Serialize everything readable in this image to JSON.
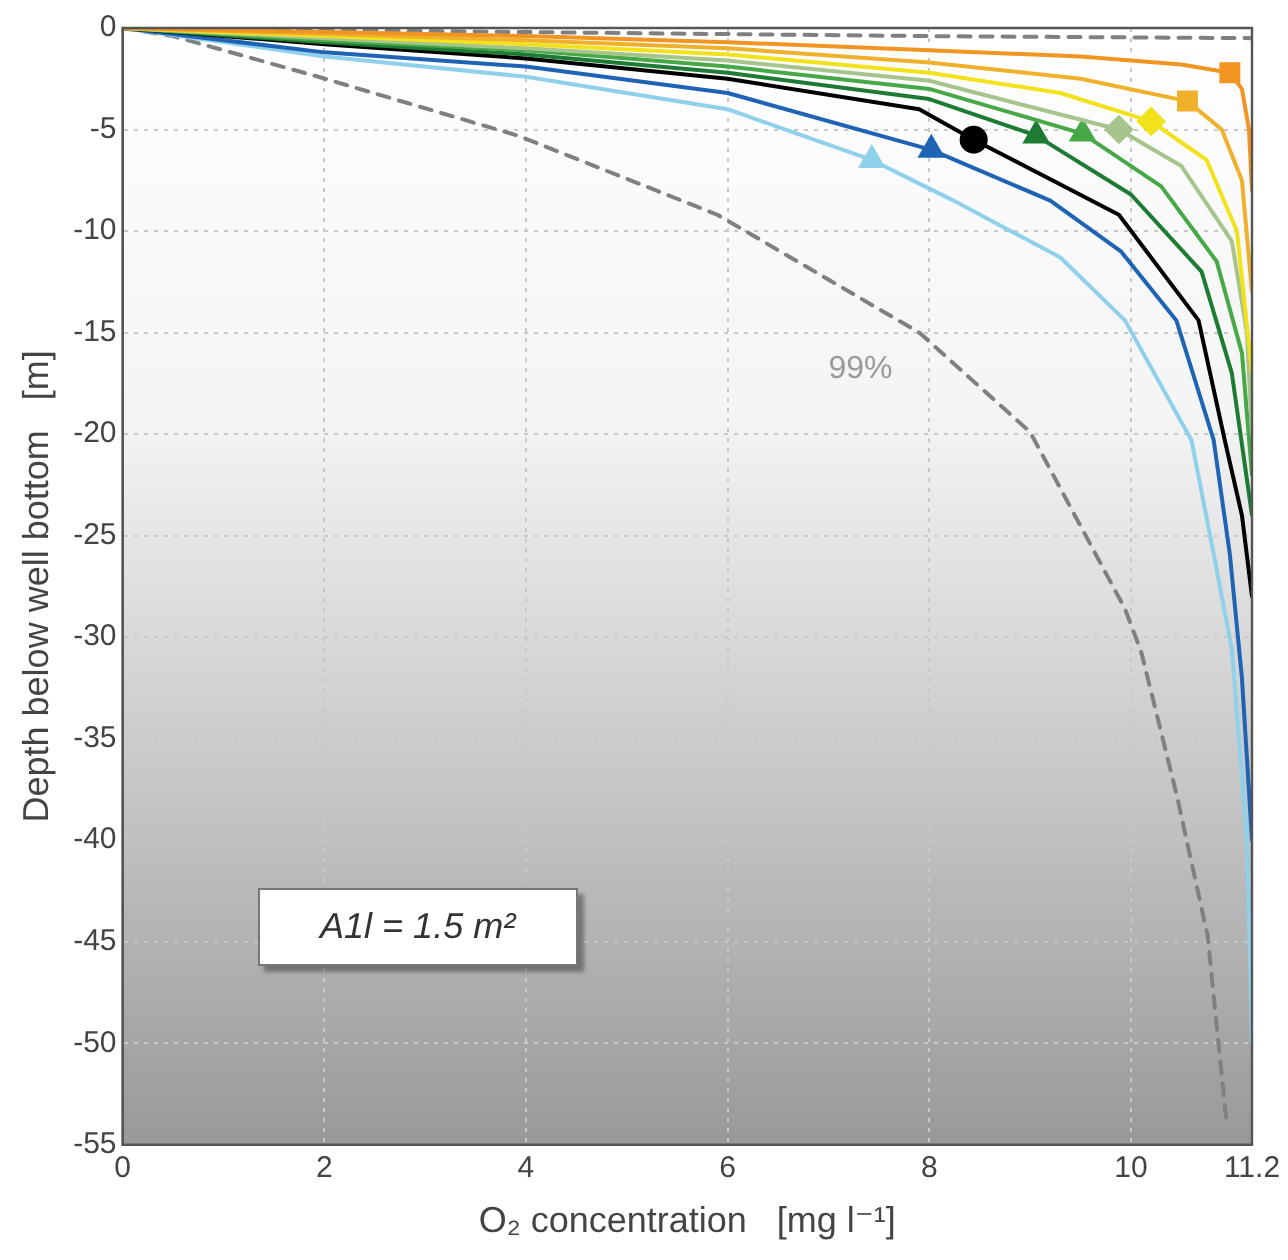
{
  "chart_data": {
    "type": "line",
    "xlabel": "O₂ concentration   [mg l⁻¹]",
    "ylabel": "Depth below well bottom   [m]",
    "xlim": [
      0,
      11.2
    ],
    "xticks": [
      0,
      2,
      4,
      6,
      8,
      10,
      11.2
    ],
    "ylim": [
      -55,
      0
    ],
    "yticks": [
      0,
      -5,
      -10,
      -15,
      -20,
      -25,
      -30,
      -35,
      -40,
      -45,
      -50,
      -55
    ],
    "grid": true,
    "legend": false,
    "annotations": [
      "99%",
      "A1l = 1.5 m²"
    ],
    "series": [
      {
        "color": "#f29422",
        "x": [
          0,
          1,
          2,
          4,
          6,
          8,
          9.5,
          10.5,
          10.98,
          11.1,
          11.17,
          11.2
        ],
        "values": [
          0,
          -0.1,
          -0.2,
          -0.4,
          -0.7,
          -1.1,
          -1.4,
          -1.8,
          -2.2,
          -3,
          -5,
          -8
        ]
      },
      {
        "color": "#efb12c",
        "x": [
          0,
          2,
          4,
          6,
          8,
          9.5,
          10.56,
          10.9,
          11.1,
          11.2
        ],
        "values": [
          0,
          -0.3,
          -0.6,
          -1,
          -1.7,
          -2.5,
          -3.6,
          -5,
          -7.5,
          -13
        ]
      },
      {
        "color": "#f2e21c",
        "x": [
          0,
          2,
          4,
          6,
          8,
          9.3,
          10.2,
          10.75,
          11.05,
          11.2
        ],
        "values": [
          0,
          -0.4,
          -0.8,
          -1.3,
          -2.2,
          -3.2,
          -4.6,
          -6.5,
          -10,
          -17
        ]
      },
      {
        "color": "#a6c58c",
        "x": [
          0,
          2,
          4,
          6,
          8,
          9.88,
          10.5,
          11.0,
          11.15,
          11.2
        ],
        "values": [
          0,
          -0.5,
          -1,
          -1.6,
          -2.6,
          -5,
          -6.8,
          -10.5,
          -15,
          -20
        ]
      },
      {
        "color": "#47a847",
        "x": [
          0,
          2,
          4,
          6,
          8,
          9.52,
          10.3,
          10.85,
          11.1,
          11.2
        ],
        "values": [
          0,
          -0.6,
          -1.1,
          -1.9,
          -3,
          -5.2,
          -7.8,
          -11.5,
          -16,
          -22
        ]
      },
      {
        "color": "#1e7b34",
        "x": [
          0,
          2,
          4,
          6,
          8,
          9.06,
          10.0,
          10.7,
          11.0,
          11.2
        ],
        "values": [
          0,
          -0.7,
          -1.3,
          -2.2,
          -3.5,
          -5.3,
          -8.2,
          -12,
          -17,
          -24
        ]
      },
      {
        "color": "#000000",
        "x": [
          0,
          2,
          4,
          6,
          7.9,
          8.44,
          9.88,
          10.67,
          10.93,
          11.1,
          11.2
        ],
        "values": [
          0,
          -0.8,
          -1.5,
          -2.5,
          -4,
          -5.5,
          -9.2,
          -14.4,
          -20.3,
          -24,
          -28
        ]
      },
      {
        "color": "#1f63b5",
        "x": [
          0,
          2,
          4,
          6,
          8.02,
          9.2,
          9.9,
          10.45,
          10.82,
          10.98,
          11.1,
          11.2
        ],
        "values": [
          0,
          -1.2,
          -1.9,
          -3.2,
          -6,
          -8.5,
          -11,
          -14.4,
          -20.3,
          -25.9,
          -32,
          -40
        ]
      },
      {
        "color": "#8fd0ea",
        "x": [
          0,
          2,
          4,
          6,
          7.43,
          8.24,
          9.3,
          9.94,
          10.6,
          10.82,
          11.0,
          11.15,
          11.2
        ],
        "values": [
          0,
          -1.4,
          -2.4,
          -4,
          -6.5,
          -8.5,
          -11.3,
          -14.4,
          -20.3,
          -25.9,
          -30.6,
          -40,
          -50
        ]
      },
      {
        "color": "#808080",
        "line_style": "dashed",
        "x": [
          0,
          0.5,
          1.94,
          3.92,
          5.9,
          7.9,
          9.0,
          9.94,
          10.1,
          10.45,
          10.76,
          10.9,
          10.95
        ],
        "values": [
          0,
          -0.4,
          -2.4,
          -5.3,
          -9.2,
          -15,
          -19.9,
          -28.6,
          -30.7,
          -37.7,
          -44.7,
          -51.6,
          -54
        ]
      },
      {
        "color": "#808080",
        "line_style": "dashed",
        "x": [
          0,
          4,
          8,
          11.2
        ],
        "values": [
          0,
          -0.2,
          -0.4,
          -0.5
        ]
      },
      {
        "type": "scatter",
        "color": "#f29422",
        "marker": "square",
        "x": [
          10.98
        ],
        "values": [
          -2.2
        ]
      },
      {
        "type": "scatter",
        "color": "#efb12c",
        "marker": "square",
        "x": [
          10.56
        ],
        "values": [
          -3.6
        ]
      },
      {
        "type": "scatter",
        "color": "#f2e21c",
        "marker": "diamond",
        "x": [
          10.2
        ],
        "values": [
          -4.6
        ]
      },
      {
        "type": "scatter",
        "color": "#a6c58c",
        "marker": "diamond",
        "x": [
          9.88
        ],
        "values": [
          -5
        ]
      },
      {
        "type": "scatter",
        "color": "#47a847",
        "marker": "triangle",
        "x": [
          9.52
        ],
        "values": [
          -5.2
        ]
      },
      {
        "type": "scatter",
        "color": "#1e7b34",
        "marker": "triangle",
        "x": [
          9.06
        ],
        "values": [
          -5.3
        ]
      },
      {
        "type": "scatter",
        "color": "#000000",
        "marker": "circle",
        "x": [
          8.44
        ],
        "values": [
          -5.5
        ]
      },
      {
        "type": "scatter",
        "color": "#1f63b5",
        "marker": "triangle",
        "x": [
          8.02
        ],
        "values": [
          -6
        ]
      },
      {
        "type": "scatter",
        "color": "#8fd0ea",
        "marker": "triangle",
        "x": [
          7.43
        ],
        "values": [
          -6.5
        ]
      }
    ]
  }
}
